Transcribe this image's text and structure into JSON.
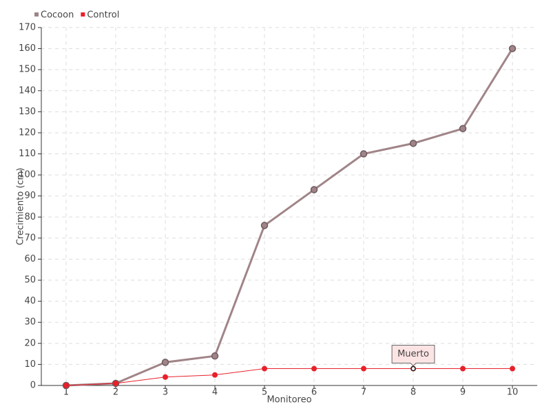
{
  "chart_data": {
    "type": "line",
    "x_label": "Monitoreo",
    "y_label": "Crecimiento (cm)",
    "categories": [
      "1",
      "2",
      "3",
      "4",
      "5",
      "6",
      "7",
      "8",
      "9",
      "10"
    ],
    "series": [
      {
        "name": "Cocoon",
        "color": "#a08488",
        "values": [
          0,
          1,
          11,
          14,
          76,
          93,
          110,
          115,
          122,
          160
        ]
      },
      {
        "name": "Control",
        "color": "#e8202a",
        "values": [
          0,
          1,
          4,
          5,
          8,
          8,
          8,
          8,
          8,
          8
        ]
      }
    ],
    "annotations": [
      {
        "text": "Muerto",
        "x": "8",
        "y": 8
      }
    ],
    "ylim": [
      0,
      170
    ],
    "yticks": [
      0,
      10,
      20,
      30,
      40,
      50,
      60,
      70,
      80,
      90,
      100,
      110,
      120,
      130,
      140,
      150,
      160,
      170
    ],
    "grid": true,
    "legend": "top-left"
  }
}
